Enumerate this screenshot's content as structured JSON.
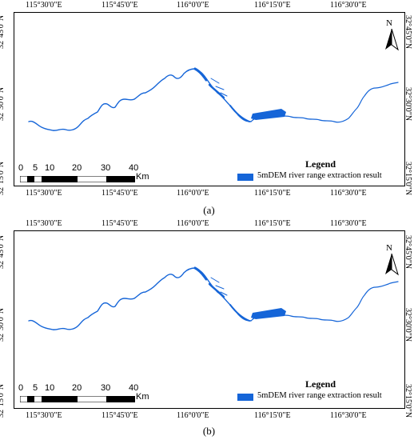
{
  "panels": [
    {
      "id": "a",
      "caption": "(a)",
      "lon_labels": [
        "115°30'0\"E",
        "115°45'0\"E",
        "116°0'0\"E",
        "116°15'0\"E",
        "116°30'0\"E"
      ],
      "lat_labels": [
        "32°45'0\"N",
        "32°30'0\"N",
        "32°15'0\"N"
      ],
      "north_label": "N",
      "legend_title": "Legend",
      "legend_item": "5mDEM river range extraction result",
      "scale_labels": [
        "0",
        "5",
        "10",
        "20",
        "30",
        "40"
      ],
      "scale_unit": "Km"
    },
    {
      "id": "b",
      "caption": "(b)",
      "lon_labels": [
        "115°30'0\"E",
        "115°45'0\"E",
        "116°0'0\"E",
        "116°15'0\"E",
        "116°30'0\"E"
      ],
      "lat_labels": [
        "32°45'0\"N",
        "32°30'0\"N",
        "32°15'0\"N"
      ],
      "north_label": "N",
      "legend_title": "Legend",
      "legend_item": "5mDEM river range extraction result",
      "scale_labels": [
        "0",
        "5",
        "10",
        "20",
        "30",
        "40"
      ],
      "scale_unit": "Km"
    }
  ],
  "colors": {
    "river": "#1565d8",
    "frame": "#000000"
  }
}
